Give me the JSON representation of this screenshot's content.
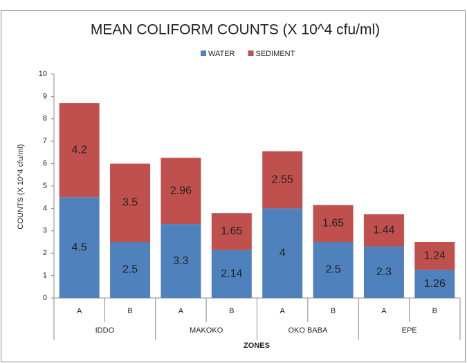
{
  "chart_data": {
    "type": "stacked_bar",
    "title": "MEAN COLIFORM COUNTS (X 10^4 cfu/ml)",
    "y_label": "COUNTS (X 10^4 cfu/ml)",
    "x_label": "ZONES",
    "categories": [
      "A",
      "B",
      "A",
      "B",
      "A",
      "B",
      "A",
      "B"
    ],
    "groups": [
      "IDDO",
      "MAKOKO",
      "OKO BABA",
      "EPE"
    ],
    "series": [
      {
        "name": "WATER",
        "color": "#4f81bd",
        "values": [
          4.5,
          2.5,
          3.3,
          2.14,
          4,
          2.5,
          2.3,
          1.26
        ]
      },
      {
        "name": "SEDIMENT",
        "color": "#c0504d",
        "values": [
          4.2,
          3.5,
          2.96,
          1.65,
          2.55,
          1.65,
          1.44,
          1.24
        ]
      }
    ],
    "ylim": [
      0,
      10
    ],
    "yticks": [
      0,
      1,
      2,
      3,
      4,
      5,
      6,
      7,
      8,
      9,
      10
    ],
    "grid": false,
    "legend": "top"
  }
}
